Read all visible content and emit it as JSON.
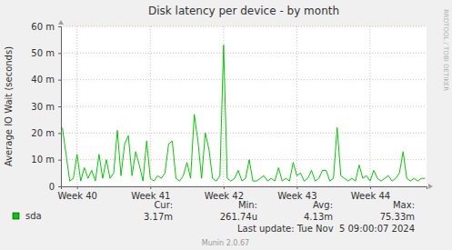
{
  "chart_data": {
    "type": "line",
    "title": "Disk latency per device - by month",
    "y_label": "Average IO Wait (seconds)",
    "x": [
      39.8,
      39.85,
      39.9,
      39.95,
      40.0,
      40.05,
      40.1,
      40.15,
      40.2,
      40.25,
      40.3,
      40.35,
      40.4,
      40.45,
      40.5,
      40.55,
      40.6,
      40.65,
      40.7,
      40.75,
      40.8,
      40.85,
      40.9,
      40.95,
      41.0,
      41.05,
      41.1,
      41.15,
      41.2,
      41.25,
      41.3,
      41.35,
      41.4,
      41.45,
      41.5,
      41.55,
      41.6,
      41.65,
      41.7,
      41.75,
      41.8,
      41.85,
      41.9,
      41.95,
      42.0,
      42.05,
      42.1,
      42.15,
      42.2,
      42.25,
      42.3,
      42.35,
      42.4,
      42.45,
      42.5,
      42.55,
      42.6,
      42.65,
      42.7,
      42.75,
      42.8,
      42.85,
      42.9,
      42.95,
      43.0,
      43.05,
      43.1,
      43.15,
      43.2,
      43.25,
      43.3,
      43.35,
      43.4,
      43.45,
      43.5,
      43.55,
      43.6,
      43.65,
      43.7,
      43.75,
      43.8,
      43.85,
      43.9,
      43.95,
      44.0,
      44.05,
      44.1,
      44.15,
      44.2,
      44.25,
      44.3,
      44.35,
      44.4,
      44.45,
      44.5,
      44.55,
      44.6,
      44.65,
      44.7,
      44.75
    ],
    "series": [
      {
        "name": "sda",
        "color": "#00cc00",
        "values": [
          0.022,
          0.012,
          0.002,
          0.003,
          0.012,
          0.002,
          0.007,
          0.003,
          0.006,
          0.002,
          0.012,
          0.003,
          0.01,
          0.003,
          0.005,
          0.021,
          0.004,
          0.016,
          0.019,
          0.004,
          0.013,
          0.008,
          0.002,
          0.017,
          0.003,
          0.002,
          0.004,
          0.003,
          0.005,
          0.016,
          0.017,
          0.003,
          0.002,
          0.004,
          0.009,
          0.003,
          0.027,
          0.017,
          0.003,
          0.02,
          0.014,
          0.003,
          0.002,
          0.004,
          0.053,
          0.003,
          0.002,
          0.003,
          0.006,
          0.002,
          0.003,
          0.01,
          0.002,
          0.002,
          0.003,
          0.004,
          0.002,
          0.003,
          0.002,
          0.007,
          0.002,
          0.003,
          0.002,
          0.009,
          0.004,
          0.005,
          0.002,
          0.003,
          0.006,
          0.002,
          0.003,
          0.006,
          0.006,
          0.002,
          0.003,
          0.022,
          0.004,
          0.003,
          0.002,
          0.003,
          0.002,
          0.008,
          0.003,
          0.004,
          0.002,
          0.006,
          0.003,
          0.002,
          0.003,
          0.004,
          0.002,
          0.003,
          0.005,
          0.013,
          0.003,
          0.002,
          0.003,
          0.002,
          0.003,
          0.003
        ]
      }
    ],
    "xlim": [
      39.78,
      44.77
    ],
    "xticks": [
      {
        "value": 40,
        "label": "Week 40"
      },
      {
        "value": 41,
        "label": "Week 41"
      },
      {
        "value": 42,
        "label": "Week 42"
      },
      {
        "value": 43,
        "label": "Week 43"
      },
      {
        "value": 44,
        "label": "Week 44"
      }
    ],
    "ylim": [
      0,
      0.06
    ],
    "yticks": [
      0,
      {
        "value": 0.01,
        "label": "10 m"
      },
      {
        "value": 0.02,
        "label": "20 m"
      },
      {
        "value": 0.03,
        "label": "30 m"
      },
      {
        "value": 0.04,
        "label": "40 m"
      },
      {
        "value": 0.05,
        "label": "50 m"
      },
      {
        "value": 0.06,
        "label": "60 m"
      }
    ],
    "grid": true,
    "stats": [
      {
        "label": "Cur:",
        "value": 0.00317,
        "value_label": "3.17m"
      },
      {
        "label": "Min:",
        "value": 0.00026174,
        "value_label": "261.74u"
      },
      {
        "label": "Avg:",
        "value": 0.00413,
        "value_label": "4.13m"
      },
      {
        "label": "Max:",
        "value": 0.07533,
        "value_label": "75.33m"
      }
    ],
    "last_update": "Last update: Tue Nov  5 09:00:07 2024",
    "footer": "Munin 2.0.67",
    "watermark": "RRDTOOL / TOBI OETIKER"
  }
}
